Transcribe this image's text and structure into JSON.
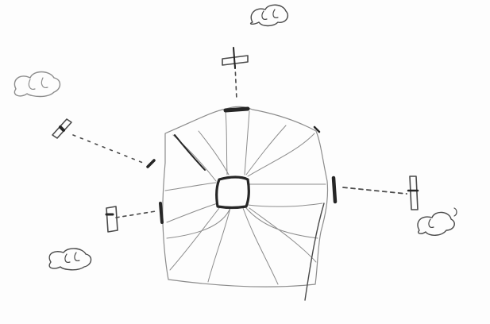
{
  "drawing": {
    "ink_color": "#4a4a4a",
    "light_ink_color": "#8c8c8c",
    "dark_ink_color": "#262626",
    "paper_color": "#fdfdfd"
  }
}
